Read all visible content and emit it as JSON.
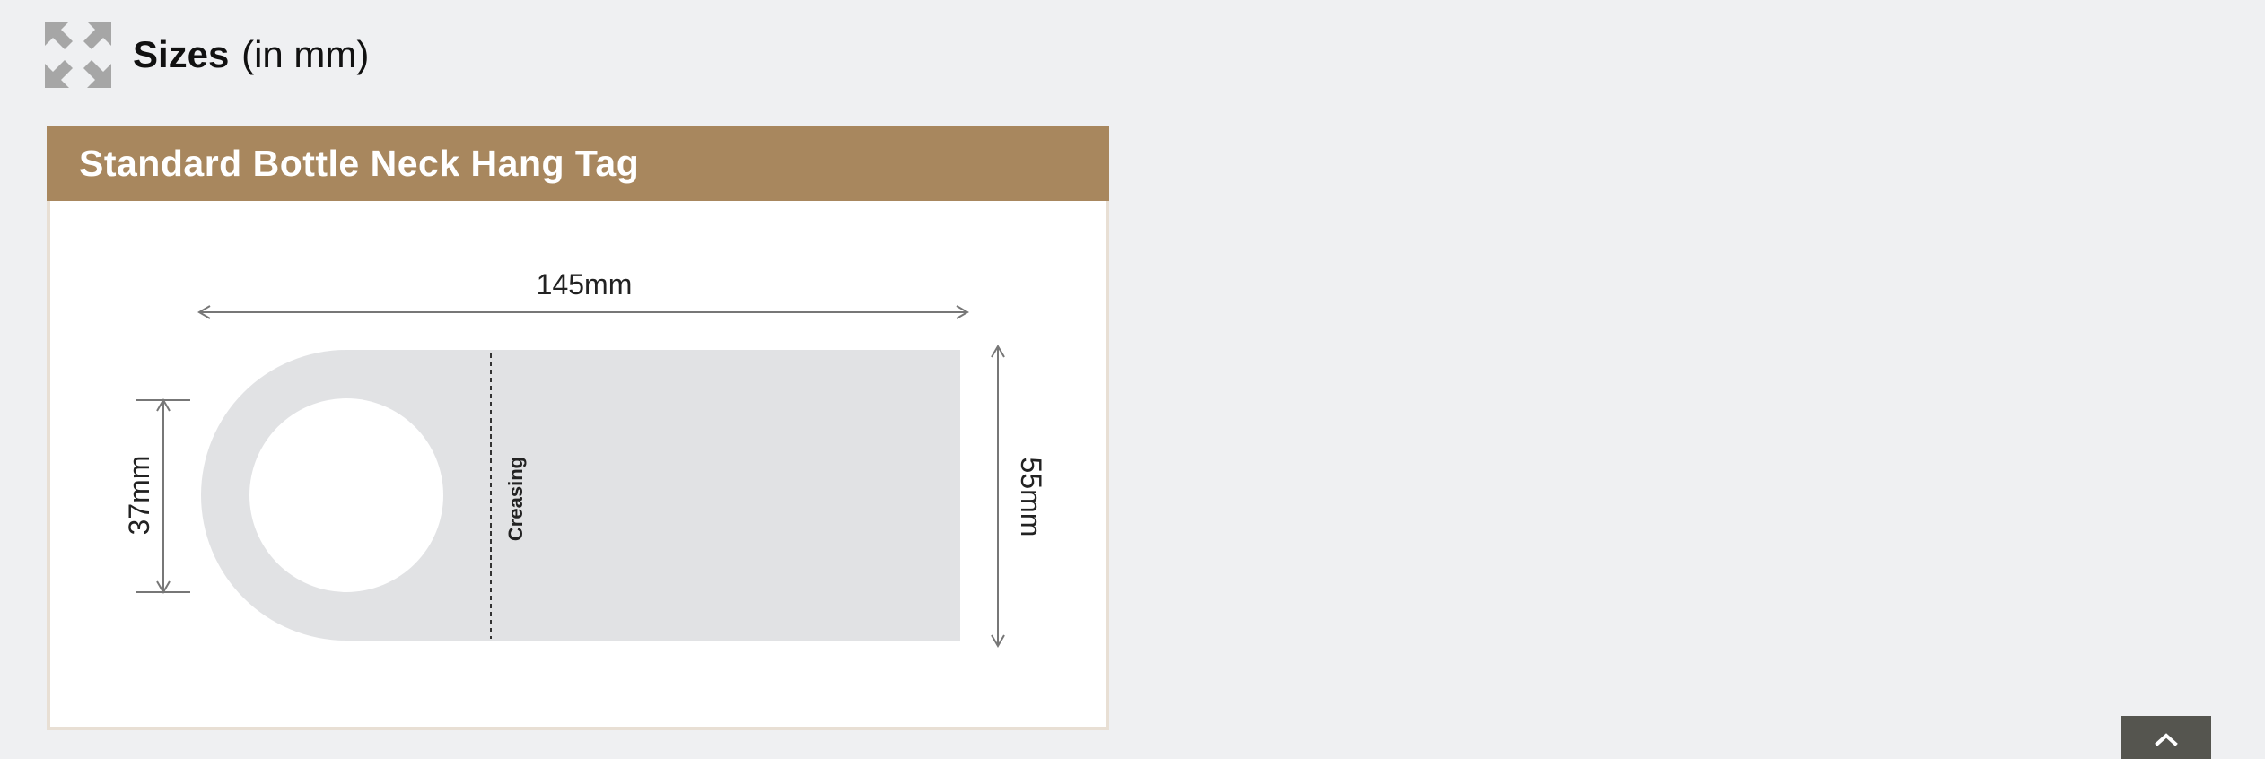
{
  "header": {
    "icon": "expand-arrows-icon",
    "title_bold": "Sizes",
    "title_unit": "(in mm)"
  },
  "card": {
    "title": "Standard Bottle Neck Hang Tag",
    "accent_color": "#a8875e",
    "border_color": "#e8dfd4"
  },
  "diagram": {
    "width_label": "145mm",
    "height_label": "55mm",
    "hole_label": "37mm",
    "crease_label": "Creasing",
    "tag_color": "#e1e2e4"
  },
  "scroll_top": {
    "icon": "chevron-up-icon",
    "color": "#55554f"
  }
}
